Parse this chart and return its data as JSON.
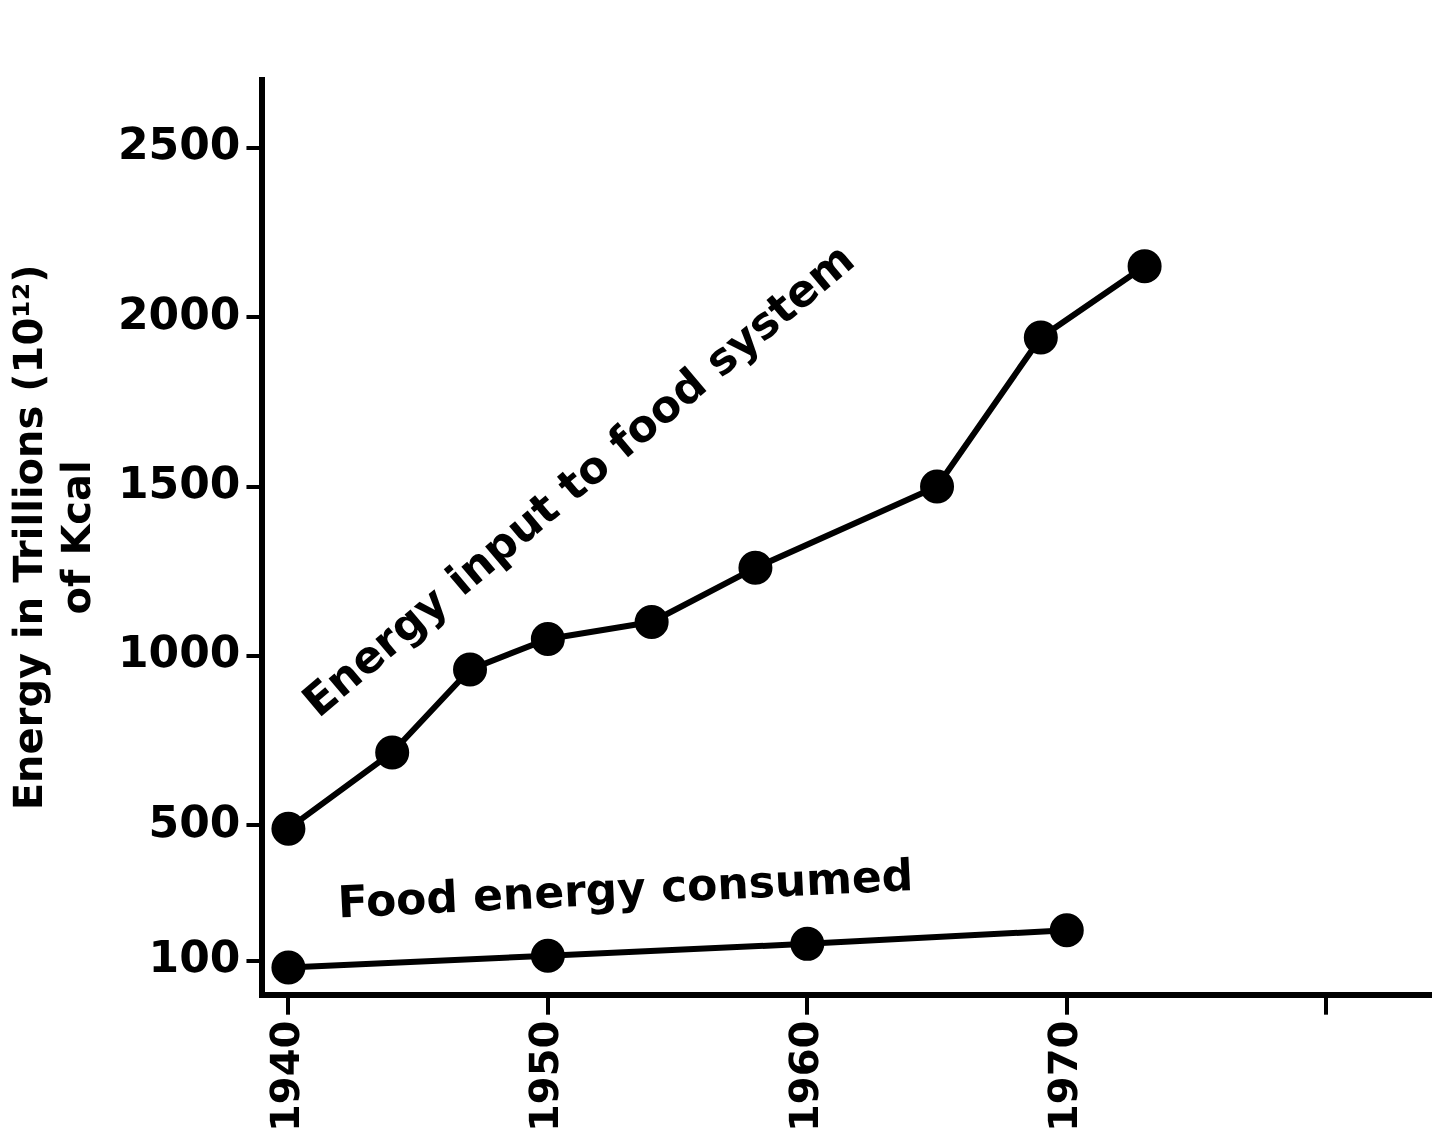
{
  "chart_data": {
    "type": "line",
    "ylabel": "Energy in Trillions (10¹²)\nof Kcal",
    "xlim": [
      1939,
      1984
    ],
    "xticks": [
      1940,
      1950,
      1960,
      1970,
      {
        "value": 1980,
        "label": null
      }
    ],
    "ylim": [
      0,
      2700
    ],
    "yticks": [
      100,
      500,
      1000,
      1500,
      2000,
      2500
    ],
    "grid": false,
    "legend": false,
    "marker": "circle",
    "line_style": "solid",
    "series": [
      {
        "name": "Energy input to food system",
        "color": "#000000",
        "x": [
          1940,
          1944,
          1947,
          1950,
          1954,
          1958,
          1965,
          1969,
          1973
        ],
        "values": [
          490,
          715,
          960,
          1050,
          1100,
          1260,
          1500,
          1940,
          2150
        ]
      },
      {
        "name": "Food energy consumed",
        "color": "#000000",
        "x": [
          1940,
          1950,
          1960,
          1970
        ],
        "values": [
          80,
          115,
          150,
          190
        ]
      }
    ]
  }
}
